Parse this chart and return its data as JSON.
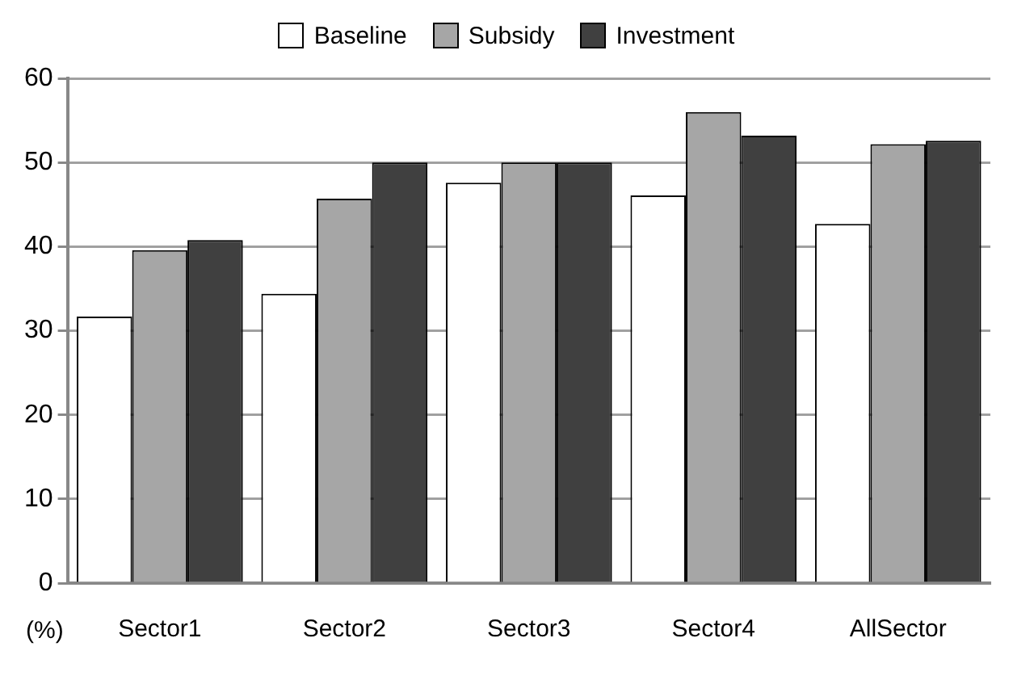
{
  "chart_data": {
    "type": "bar",
    "ylabel": "(%)",
    "categories": [
      "Sector1",
      "Sector2",
      "Sector3",
      "Sector4",
      "AllSector"
    ],
    "series": [
      {
        "name": "Baseline",
        "color": "#ffffff",
        "values": [
          31.7,
          34.4,
          47.6,
          46.1,
          42.7
        ]
      },
      {
        "name": "Subsidy",
        "color": "#a6a6a6",
        "values": [
          39.6,
          45.7,
          50,
          56,
          52.2
        ]
      },
      {
        "name": "Investment",
        "color": "#404040",
        "values": [
          40.8,
          50,
          50,
          53.2,
          52.6
        ]
      }
    ],
    "ylim": [
      0,
      60
    ],
    "yticks": [
      0,
      10,
      20,
      30,
      40,
      50,
      60
    ],
    "grid": "y",
    "legend": "top"
  }
}
